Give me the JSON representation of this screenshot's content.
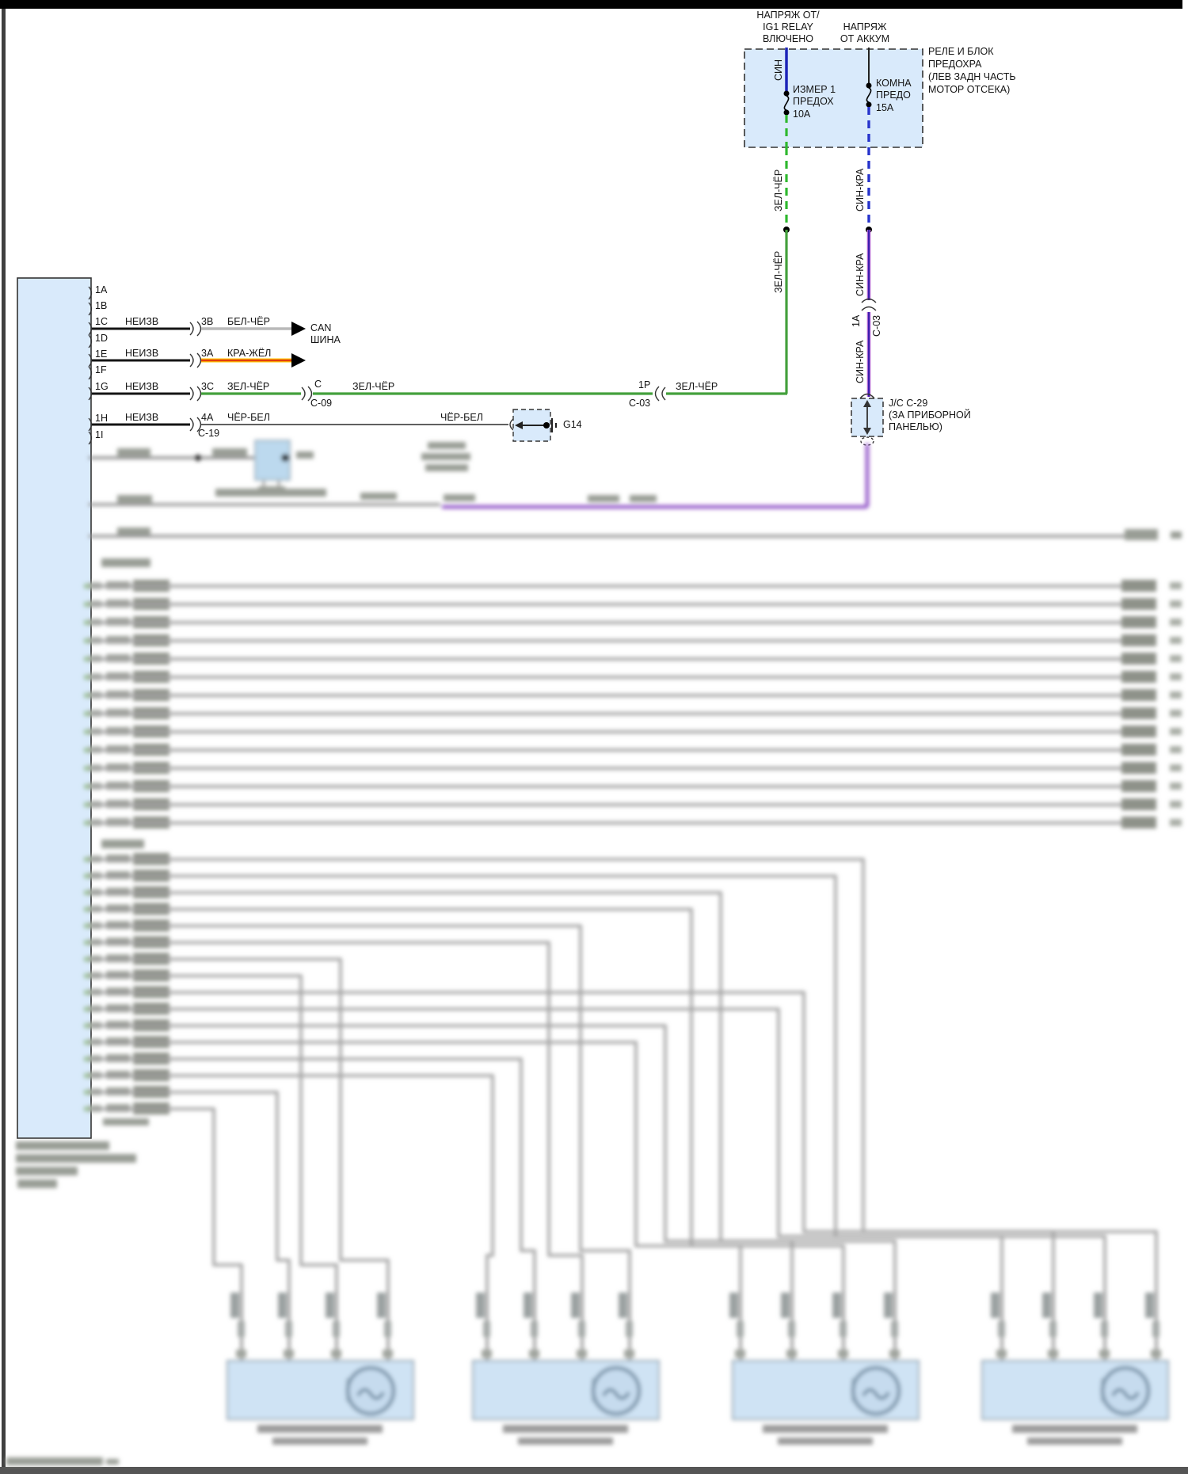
{
  "feeds": {
    "ig1": [
      "НАПРЯЖ ОТ/",
      "IG1 RELAY",
      "ВЛЮЧЕНО"
    ],
    "batt": [
      "НАПРЯЖ",
      "ОТ АККУМ"
    ]
  },
  "relay_box": {
    "title": [
      "РЕЛЕ И БЛОК",
      "ПРЕДОХРА",
      "(ЛЕВ ЗАДН ЧАСТЬ",
      "МОТОР ОТСЕКА)"
    ],
    "fuse1": [
      "ИЗМЕР 1",
      "ПРЕДОХ",
      "10А"
    ],
    "fuse2": [
      "КОМНА",
      "ПРЕДО",
      "15А"
    ]
  },
  "wire_labels": {
    "sin": "СИН",
    "zel_cher": "ЗЕЛ-ЧЁР",
    "sin_kra": "СИН-КРА",
    "bel_cher": "БЕЛ-ЧЁР",
    "kra_zhel": "КРА-ЖЁЛ",
    "cher_bel": "ЧЁР-БЕЛ",
    "neizv": "НЕИЗВ"
  },
  "breaks": {
    "a1": "1А",
    "c03": "С-03",
    "c": "C",
    "c09": "C-09",
    "p1": "1P",
    "c19": "C-19"
  },
  "jc": {
    "lines": [
      "J/C С-29",
      "(ЗА ПРИБОРНОЙ",
      "ПАНЕЛЬЮ)"
    ]
  },
  "ground": {
    "id": "G14"
  },
  "connector": {
    "pins": [
      "1A",
      "1B",
      "1C",
      "1D",
      "1E",
      "1F",
      "1G",
      "1H",
      "1I"
    ],
    "out_pins": {
      "b3": "3B",
      "a3": "3A",
      "c3": "3C",
      "a4": "4A"
    }
  },
  "dest": {
    "can": [
      "CAN",
      "ШИНА"
    ]
  },
  "colors": {
    "green": "#43a03c",
    "green_dash": "#2eb82e",
    "blue": "#1c24b8",
    "blue_dash": "#2633cc",
    "purple_core": "#5b2fb8",
    "purple_edge": "#b86cd6",
    "red": "#e23d0c",
    "yellow": "#ffc400",
    "grey_wire": "#b9b9b9",
    "box_fill": "#d9eafb"
  }
}
